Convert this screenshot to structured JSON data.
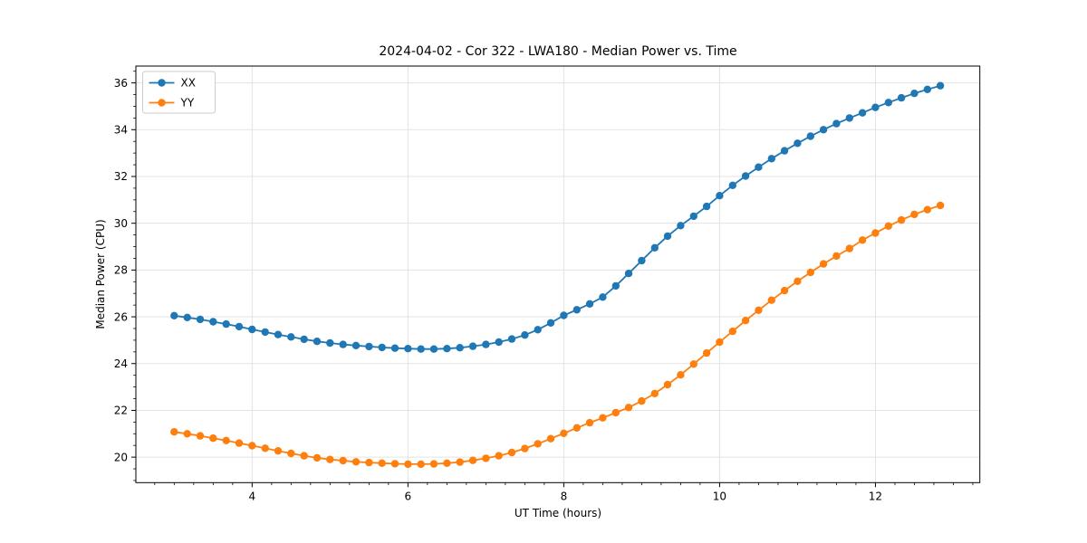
{
  "figure": {
    "background": "#ffffff"
  },
  "chart_data": {
    "type": "line",
    "title": "2024-04-02 - Cor 322 - LWA180 - Median Power vs. Time",
    "xlabel": "UT Time (hours)",
    "ylabel": "Median Power (CPU)",
    "xlim": [
      2.508,
      13.34
    ],
    "ylim": [
      18.91,
      36.72
    ],
    "xticks": [
      4,
      6,
      8,
      10,
      12
    ],
    "yticks": [
      20,
      22,
      24,
      26,
      28,
      30,
      32,
      34,
      36
    ],
    "x_minor_step": 0.25,
    "y_minor_step": 0.5,
    "grid": true,
    "grid_color": "#e3e3e3",
    "spine_color": "#000000",
    "legend_position": "upper left",
    "x": [
      3.0,
      3.167,
      3.333,
      3.5,
      3.667,
      3.833,
      4.0,
      4.167,
      4.333,
      4.5,
      4.667,
      4.833,
      5.0,
      5.167,
      5.333,
      5.5,
      5.667,
      5.833,
      6.0,
      6.167,
      6.333,
      6.5,
      6.667,
      6.833,
      7.0,
      7.167,
      7.333,
      7.5,
      7.667,
      7.833,
      8.0,
      8.167,
      8.333,
      8.5,
      8.667,
      8.833,
      9.0,
      9.167,
      9.333,
      9.5,
      9.667,
      9.833,
      10.0,
      10.167,
      10.333,
      10.5,
      10.667,
      10.833,
      11.0,
      11.167,
      11.333,
      11.5,
      11.667,
      11.833,
      12.0,
      12.167,
      12.333,
      12.5,
      12.667,
      12.833
    ],
    "series": [
      {
        "name": "XX",
        "color": "#1f77b4",
        "marker": "circle",
        "values": [
          26.05,
          25.97,
          25.89,
          25.79,
          25.69,
          25.58,
          25.46,
          25.35,
          25.24,
          25.14,
          25.04,
          24.95,
          24.88,
          24.82,
          24.77,
          24.73,
          24.69,
          24.66,
          24.64,
          24.62,
          24.62,
          24.64,
          24.68,
          24.74,
          24.82,
          24.92,
          25.05,
          25.22,
          25.45,
          25.74,
          26.06,
          26.3,
          26.55,
          26.84,
          27.32,
          27.85,
          28.4,
          28.95,
          29.45,
          29.9,
          30.3,
          30.72,
          31.18,
          31.62,
          32.02,
          32.4,
          32.76,
          33.1,
          33.42,
          33.72,
          34.0,
          34.26,
          34.5,
          34.72,
          34.95,
          35.16,
          35.36,
          35.55,
          35.72,
          35.88
        ]
      },
      {
        "name": "YY",
        "color": "#ff7f0e",
        "marker": "circle",
        "values": [
          21.08,
          21.0,
          20.91,
          20.81,
          20.71,
          20.6,
          20.49,
          20.38,
          20.27,
          20.16,
          20.06,
          19.97,
          19.9,
          19.85,
          19.8,
          19.77,
          19.74,
          19.72,
          19.7,
          19.7,
          19.71,
          19.74,
          19.79,
          19.86,
          19.95,
          20.06,
          20.2,
          20.37,
          20.57,
          20.79,
          21.02,
          21.25,
          21.47,
          21.68,
          21.9,
          22.12,
          22.4,
          22.72,
          23.1,
          23.52,
          23.98,
          24.45,
          24.92,
          25.38,
          25.84,
          26.28,
          26.71,
          27.12,
          27.52,
          27.9,
          28.26,
          28.6,
          28.92,
          29.28,
          29.58,
          29.88,
          30.14,
          30.38,
          30.58,
          30.76
        ]
      }
    ]
  }
}
